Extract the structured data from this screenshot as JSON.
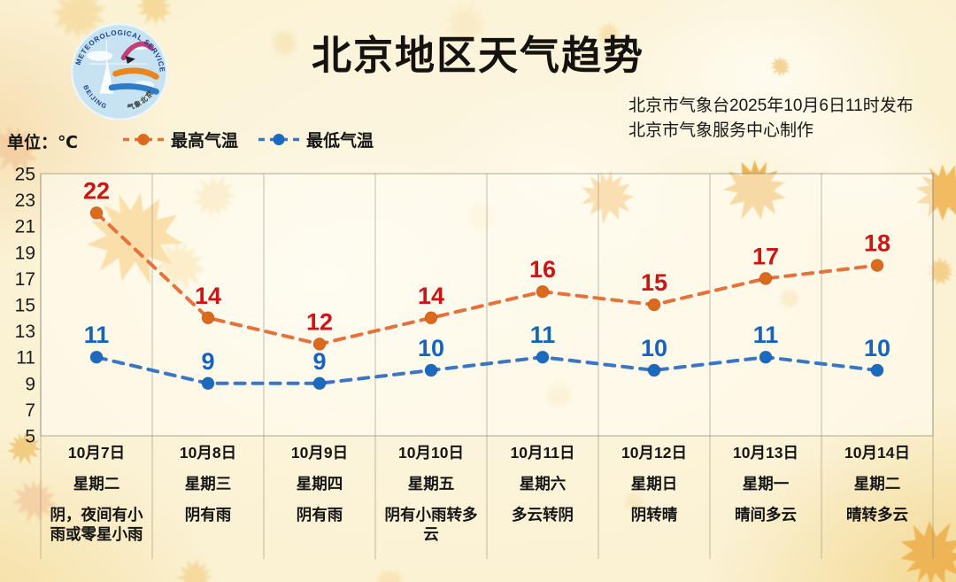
{
  "header": {
    "title": "北京地区天气趋势",
    "issued_line": "北京市气象台2025年10月6日11时发布",
    "produced_line": "北京市气象服务中心制作",
    "logo": {
      "arc_top_text": "METEOROLOGICAL SERVICE",
      "arc_bottom_left_text": "BEIJING",
      "arc_bottom_right_text": "气象北京"
    }
  },
  "legend": {
    "unit_label": "单位：℃",
    "items": [
      {
        "label": "最高气温",
        "line_color": "#E5713B",
        "point_color": "#DC691C"
      },
      {
        "label": "最低气温",
        "line_color": "#3A76C4",
        "point_color": "#1A6AC0"
      }
    ]
  },
  "chart_data": {
    "type": "line",
    "title": "北京地区天气趋势",
    "categories": [
      "10月7日",
      "10月8日",
      "10月9日",
      "10月10日",
      "10月11日",
      "10月12日",
      "10月13日",
      "10月14日"
    ],
    "weekdays": [
      "星期二",
      "星期三",
      "星期四",
      "星期五",
      "星期六",
      "星期日",
      "星期一",
      "星期二"
    ],
    "conditions": [
      "阴，夜间有小雨或零星小雨",
      "阴有雨",
      "阴有雨",
      "阴有小雨转多云",
      "多云转阴",
      "阴转晴",
      "晴间多云",
      "晴转多云"
    ],
    "series": [
      {
        "name": "最高气温",
        "values": [
          22,
          14,
          12,
          14,
          16,
          15,
          17,
          18
        ],
        "line_color": "#E5713B",
        "point_color": "#DC691C",
        "label_color": "#CC1615"
      },
      {
        "name": "最低气温",
        "values": [
          11,
          9,
          9,
          10,
          11,
          10,
          11,
          10
        ],
        "line_color": "#3A76C4",
        "point_color": "#1A6AC0",
        "label_color": "#1563BC"
      }
    ],
    "ylabel": "单位：℃",
    "ylim": [
      5,
      25
    ],
    "yticks": [
      25,
      23,
      21,
      19,
      17,
      15,
      13,
      11,
      9,
      7,
      5
    ],
    "grid": "vertical-only",
    "legend_position": "top-left",
    "line_style": "dashed-with-dots"
  }
}
